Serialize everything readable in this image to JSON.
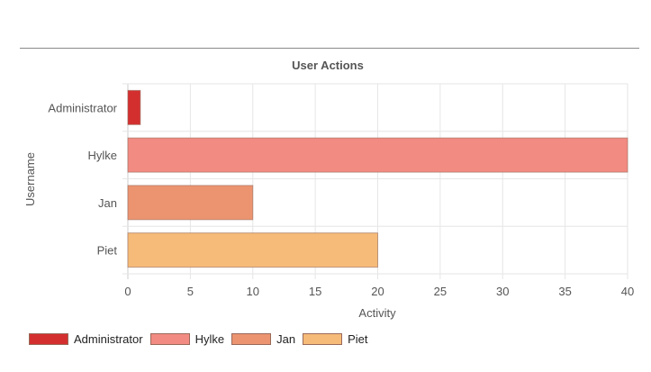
{
  "chart_data": {
    "type": "bar",
    "orientation": "horizontal",
    "title": "User Actions",
    "xlabel": "Activity",
    "ylabel": "Username",
    "categories": [
      "Administrator",
      "Hylke",
      "Jan",
      "Piet"
    ],
    "values": [
      1,
      40,
      10,
      20
    ],
    "colors": [
      "#d32f2f",
      "#f28b82",
      "#ec9470",
      "#f6bb78"
    ],
    "xlim": [
      0,
      40
    ],
    "xticks": [
      0,
      5,
      10,
      15,
      20,
      25,
      30,
      35,
      40
    ],
    "grid": true,
    "legend_position": "bottom-left",
    "legend": [
      "Administrator",
      "Hylke",
      "Jan",
      "Piet"
    ]
  }
}
